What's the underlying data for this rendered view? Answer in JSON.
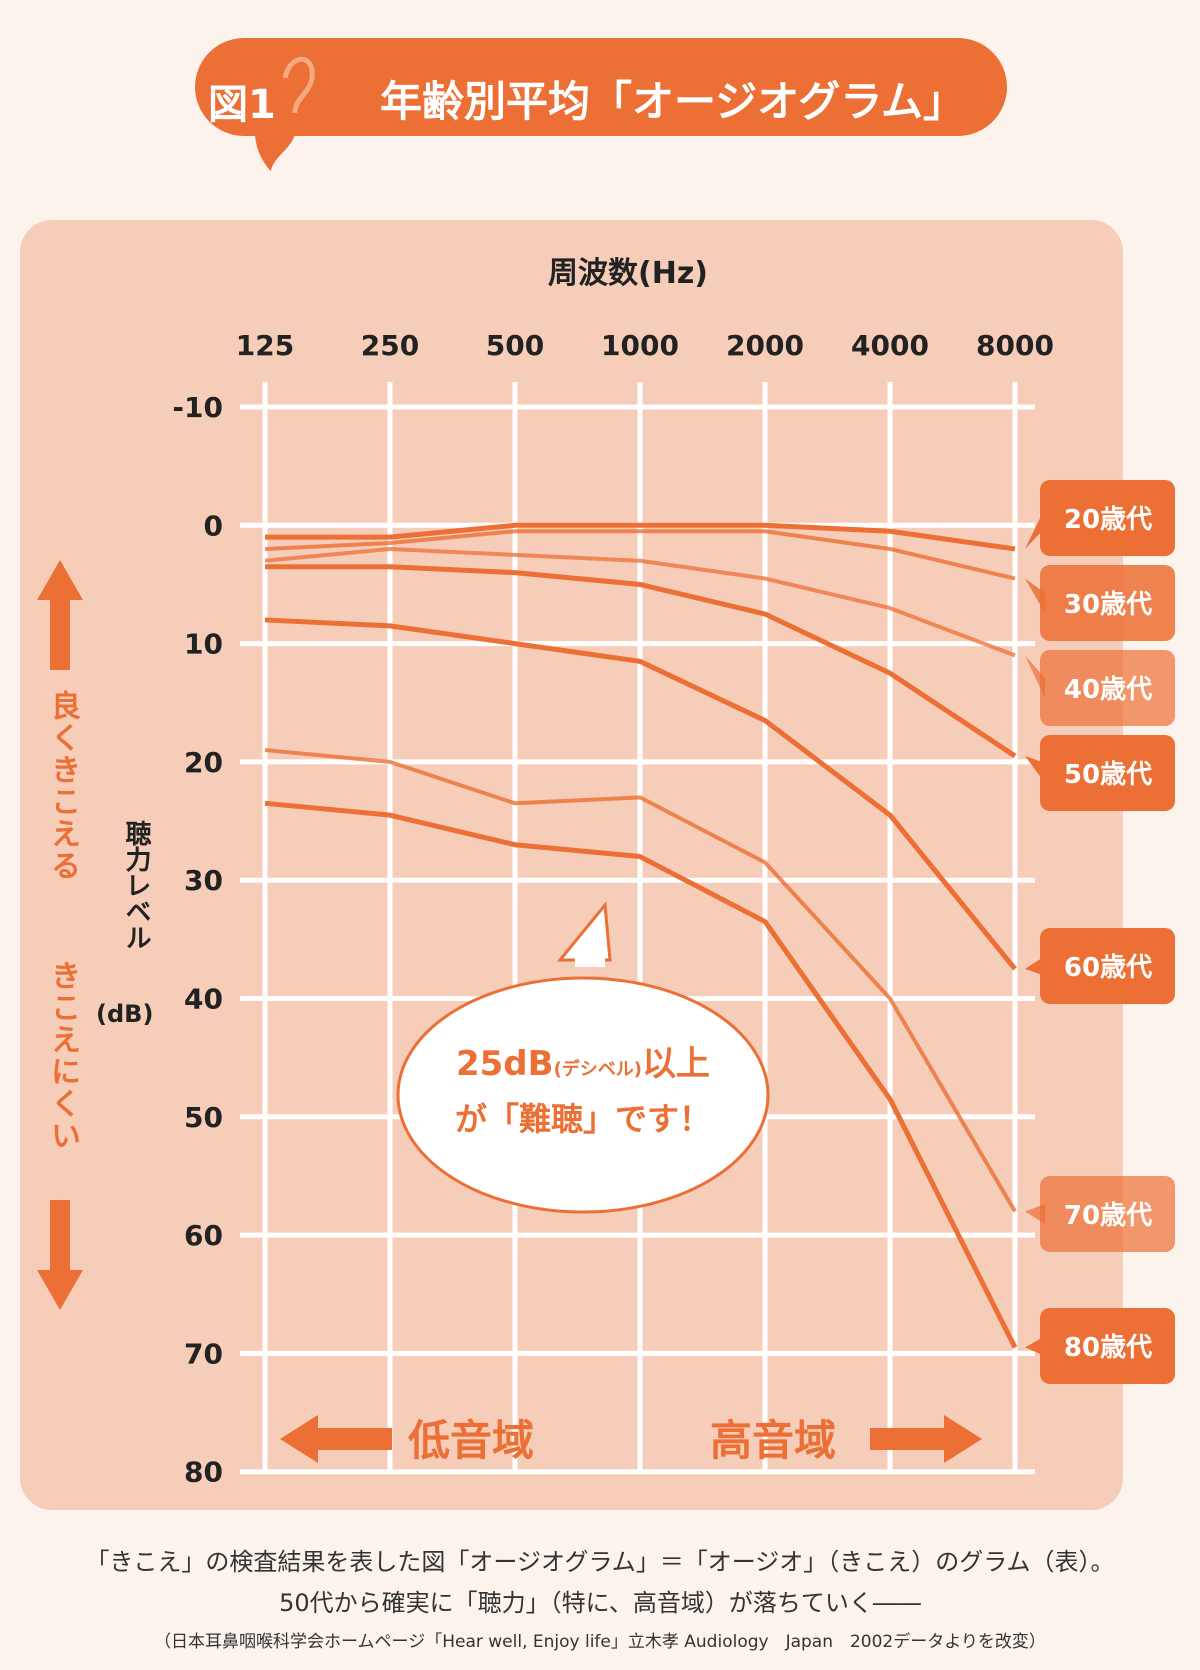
{
  "header": {
    "badge": "図1",
    "title": "年齢別平均「オージオグラム」"
  },
  "annotations": {
    "better": "良くきこえる",
    "worse": "きこえにくい",
    "ylabel_main": "聴力レベル",
    "ylabel_unit": "(dB)",
    "low_range": "低音域",
    "high_range": "高音域",
    "bubble_line1_main": "25dB",
    "bubble_line1_small": "(デシベル)",
    "bubble_line1_end": "以上",
    "bubble_line2": "が「難聴」です！"
  },
  "captions": {
    "line1": "「きこえ」の検査結果を表した図「オージオグラム」＝「オージオ」（きこえ）のグラム（表）。",
    "line2": "50代から確実に「聴力」（特に、高音域）が落ちていく――",
    "line3": "（日本耳鼻咽喉科学会ホームページ「Hear well, Enjoy life」立木孝 Audiology　Japan　2002データよりを改変）"
  },
  "colors": {
    "accent": "#ec6f35",
    "panel": "#f6cdb8",
    "grid": "#ffffff",
    "background": "#fbf3ec"
  },
  "chart_data": {
    "type": "line",
    "xlabel": "周波数(Hz)",
    "ylabel": "聴力レベル(dB)",
    "categories": [
      "125",
      "250",
      "500",
      "1000",
      "2000",
      "4000",
      "8000"
    ],
    "yticks": [
      "-10",
      "0",
      "10",
      "20",
      "30",
      "40",
      "50",
      "60",
      "70",
      "80"
    ],
    "ylim": [
      -10,
      80
    ],
    "y_inverted": true,
    "grid": true,
    "series": [
      {
        "name": "20歳代",
        "values": [
          1,
          1,
          0,
          0,
          0,
          0.5,
          2
        ]
      },
      {
        "name": "30歳代",
        "values": [
          2,
          1.5,
          0.5,
          0.5,
          0.5,
          2,
          4.5
        ]
      },
      {
        "name": "40歳代",
        "values": [
          3,
          2,
          2.5,
          3,
          4.5,
          7,
          11
        ]
      },
      {
        "name": "50歳代",
        "values": [
          3.5,
          3.5,
          4,
          5,
          7.5,
          12.5,
          19.5
        ]
      },
      {
        "name": "60歳代",
        "values": [
          8,
          8.5,
          10,
          11.5,
          16.5,
          24.5,
          37.5
        ]
      },
      {
        "name": "70歳代",
        "values": [
          19,
          20,
          23.5,
          23,
          28.5,
          40,
          58
        ]
      },
      {
        "name": "80歳代",
        "values": [
          23.5,
          24.5,
          27,
          28,
          33.5,
          48.5,
          69.5
        ]
      }
    ]
  }
}
